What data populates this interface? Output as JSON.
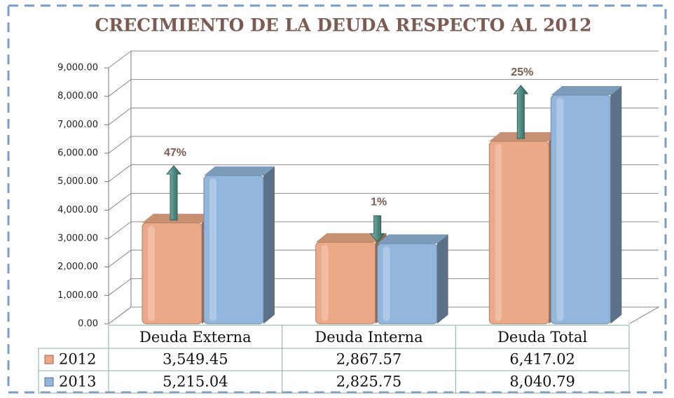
{
  "chart_data": {
    "type": "bar",
    "title": "CRECIMIENTO DE LA DEUDA RESPECTO AL 2012",
    "categories": [
      "Deuda Externa",
      "Deuda Interna",
      "Deuda Total"
    ],
    "series": [
      {
        "name": "2012",
        "color": "#eba987",
        "values": [
          3549.45,
          2867.57,
          6417.02
        ],
        "value_labels": [
          "3,549.45",
          "2,867.57",
          "6,417.02"
        ]
      },
      {
        "name": "2013",
        "color": "#93b6dc",
        "values": [
          5215.04,
          2825.75,
          8040.79
        ],
        "value_labels": [
          "5,215.04",
          "2,825.75",
          "8,040.79"
        ]
      }
    ],
    "annotations": [
      {
        "text": "47%",
        "direction": "up"
      },
      {
        "text": "1%",
        "direction": "down"
      },
      {
        "text": "25%",
        "direction": "up"
      }
    ],
    "ylim": [
      0,
      9000
    ],
    "yticks": [
      {
        "value": 0,
        "label": "0.00"
      },
      {
        "value": 1000,
        "label": "1,000.00"
      },
      {
        "value": 2000,
        "label": "2,000.00"
      },
      {
        "value": 3000,
        "label": "3,000.00"
      },
      {
        "value": 4000,
        "label": "4,000.00"
      },
      {
        "value": 5000,
        "label": "5,000.00"
      },
      {
        "value": 6000,
        "label": "6,000.00"
      },
      {
        "value": 7000,
        "label": "7,000.00"
      },
      {
        "value": 8000,
        "label": "8,000.00"
      },
      {
        "value": 9000,
        "label": "9,000.00"
      }
    ],
    "grid": true
  }
}
